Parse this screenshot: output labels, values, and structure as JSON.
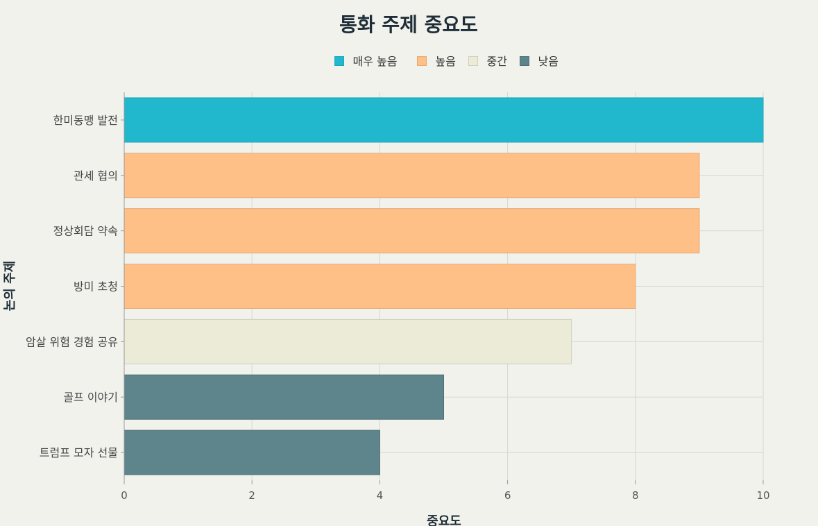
{
  "chart_data": {
    "type": "bar",
    "orientation": "horizontal",
    "title": "통화 주제 중요도",
    "xlabel": "중요도",
    "ylabel": "논의 주제",
    "xlim": [
      0,
      10
    ],
    "x_ticks": [
      0,
      2,
      4,
      6,
      8,
      10
    ],
    "grid": true,
    "legend_position": "top-center",
    "legend": [
      {
        "label": "매우 높음",
        "color": "#21b8ce"
      },
      {
        "label": "높음",
        "color": "#ffc088"
      },
      {
        "label": "중간",
        "color": "#ebebd8"
      },
      {
        "label": "낮음",
        "color": "#5e858b"
      }
    ],
    "categories": [
      "한미동맹 발전",
      "관세 협의",
      "정상회담 약속",
      "방미 초청",
      "암살 위험 경험 공유",
      "골프 이야기",
      "트럼프 모자 선물"
    ],
    "values": [
      10,
      9,
      9,
      8,
      7,
      5,
      4
    ],
    "levels": [
      "매우 높음",
      "높음",
      "높음",
      "높음",
      "중간",
      "낮음",
      "낮음"
    ]
  }
}
